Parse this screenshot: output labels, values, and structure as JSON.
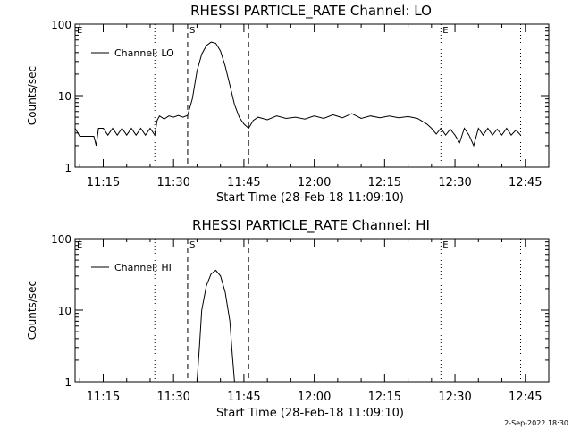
{
  "footer": {
    "timestamp": "2-Sep-2022 18:30"
  },
  "chart_data": [
    {
      "type": "line",
      "title": "RHESSI PARTICLE_RATE Channel: LO",
      "xlabel": "Start Time (28-Feb-18 11:09:10)",
      "ylabel": "Counts/sec",
      "yscale": "log",
      "xlim": [
        "11:09",
        "12:50"
      ],
      "ylim": [
        1,
        100
      ],
      "x_ticks": [
        "11:15",
        "11:30",
        "11:45",
        "12:00",
        "12:15",
        "12:30",
        "12:45"
      ],
      "y_ticks": [
        "1",
        "10",
        "100"
      ],
      "legend": {
        "label": "Channel: LO",
        "placement": "top-left"
      },
      "markers": [
        {
          "label": "E",
          "time": "11:09",
          "style": "dotted"
        },
        {
          "label": "",
          "time": "11:26",
          "style": "dotted"
        },
        {
          "label": "S",
          "time": "11:33",
          "style": "dashed"
        },
        {
          "label": "",
          "time": "11:46",
          "style": "dashed"
        },
        {
          "label": "E",
          "time": "12:27",
          "style": "dotted"
        },
        {
          "label": "",
          "time": "12:44",
          "style": "dotted"
        }
      ],
      "series": [
        {
          "name": "Channel: LO",
          "points": [
            [
              "11:09",
              3.5
            ],
            [
              "11:10",
              2.7
            ],
            [
              "11:11",
              2.7
            ],
            [
              "11:12",
              2.7
            ],
            [
              "11:13",
              2.7
            ],
            [
              "11:13.5",
              2.0
            ],
            [
              "11:14",
              3.5
            ],
            [
              "11:15",
              3.5
            ],
            [
              "11:16",
              2.8
            ],
            [
              "11:17",
              3.5
            ],
            [
              "11:18",
              2.8
            ],
            [
              "11:19",
              3.5
            ],
            [
              "11:20",
              2.8
            ],
            [
              "11:21",
              3.5
            ],
            [
              "11:22",
              2.8
            ],
            [
              "11:23",
              3.5
            ],
            [
              "11:24",
              2.8
            ],
            [
              "11:25",
              3.5
            ],
            [
              "11:26",
              2.8
            ],
            [
              "11:26.5",
              4.5
            ],
            [
              "11:27",
              5.2
            ],
            [
              "11:28",
              4.7
            ],
            [
              "11:29",
              5.2
            ],
            [
              "11:30",
              5.0
            ],
            [
              "11:31",
              5.3
            ],
            [
              "11:32",
              5.0
            ],
            [
              "11:33",
              5.3
            ],
            [
              "11:34",
              9.0
            ],
            [
              "11:35",
              22
            ],
            [
              "11:36",
              38
            ],
            [
              "11:37",
              50
            ],
            [
              "11:38",
              56
            ],
            [
              "11:39",
              54
            ],
            [
              "11:40",
              42
            ],
            [
              "11:41",
              26
            ],
            [
              "11:42",
              14
            ],
            [
              "11:43",
              7.5
            ],
            [
              "11:44",
              5.0
            ],
            [
              "11:45",
              4.0
            ],
            [
              "11:46",
              3.5
            ],
            [
              "11:47",
              4.5
            ],
            [
              "11:48",
              5.0
            ],
            [
              "11:50",
              4.6
            ],
            [
              "11:52",
              5.2
            ],
            [
              "11:54",
              4.8
            ],
            [
              "11:56",
              5.0
            ],
            [
              "11:58",
              4.7
            ],
            [
              "12:00",
              5.2
            ],
            [
              "12:02",
              4.8
            ],
            [
              "12:04",
              5.4
            ],
            [
              "12:06",
              4.9
            ],
            [
              "12:08",
              5.6
            ],
            [
              "12:10",
              4.8
            ],
            [
              "12:12",
              5.2
            ],
            [
              "12:14",
              4.9
            ],
            [
              "12:16",
              5.2
            ],
            [
              "12:18",
              4.9
            ],
            [
              "12:20",
              5.1
            ],
            [
              "12:22",
              4.8
            ],
            [
              "12:24",
              4.0
            ],
            [
              "12:25",
              3.5
            ],
            [
              "12:26",
              2.9
            ],
            [
              "12:27",
              3.5
            ],
            [
              "12:28",
              2.8
            ],
            [
              "12:29",
              3.4
            ],
            [
              "12:30",
              2.8
            ],
            [
              "12:31",
              2.2
            ],
            [
              "12:32",
              3.5
            ],
            [
              "12:33",
              2.8
            ],
            [
              "12:34",
              2.0
            ],
            [
              "12:35",
              3.5
            ],
            [
              "12:36",
              2.8
            ],
            [
              "12:37",
              3.5
            ],
            [
              "12:38",
              2.8
            ],
            [
              "12:39",
              3.4
            ],
            [
              "12:40",
              2.8
            ],
            [
              "12:41",
              3.5
            ],
            [
              "12:42",
              2.8
            ],
            [
              "12:43",
              3.3
            ],
            [
              "12:44",
              2.8
            ]
          ]
        }
      ]
    },
    {
      "type": "line",
      "title": "RHESSI PARTICLE_RATE Channel: HI",
      "xlabel": "Start Time (28-Feb-18 11:09:10)",
      "ylabel": "Counts/sec",
      "yscale": "log",
      "xlim": [
        "11:09",
        "12:50"
      ],
      "ylim": [
        1,
        100
      ],
      "x_ticks": [
        "11:15",
        "11:30",
        "11:45",
        "12:00",
        "12:15",
        "12:30",
        "12:45"
      ],
      "y_ticks": [
        "1",
        "10",
        "100"
      ],
      "legend": {
        "label": "Channel: HI",
        "placement": "top-left"
      },
      "markers": [
        {
          "label": "E",
          "time": "11:09",
          "style": "dotted"
        },
        {
          "label": "",
          "time": "11:26",
          "style": "dotted"
        },
        {
          "label": "S",
          "time": "11:33",
          "style": "dashed"
        },
        {
          "label": "",
          "time": "11:46",
          "style": "dashed"
        },
        {
          "label": "E",
          "time": "12:27",
          "style": "dotted"
        },
        {
          "label": "",
          "time": "12:44",
          "style": "dotted"
        }
      ],
      "series": [
        {
          "name": "Channel: HI",
          "points": [
            [
              "11:35",
              1.0
            ],
            [
              "11:35.5",
              3.0
            ],
            [
              "11:36",
              10
            ],
            [
              "11:37",
              22
            ],
            [
              "11:38",
              32
            ],
            [
              "11:39",
              36
            ],
            [
              "11:40",
              30
            ],
            [
              "11:41",
              18
            ],
            [
              "11:42",
              7
            ],
            [
              "11:42.5",
              2.5
            ],
            [
              "11:43",
              1.0
            ]
          ]
        }
      ]
    }
  ]
}
